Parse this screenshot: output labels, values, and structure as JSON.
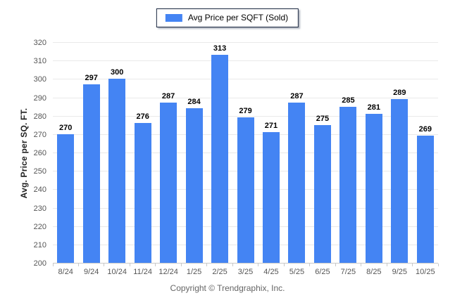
{
  "legend": {
    "label": "Avg Price per SQFT (Sold)",
    "swatch_color": "#4484f3"
  },
  "footer": {
    "copyright": "Copyright © Trendgraphix, Inc."
  },
  "chart_data": {
    "type": "bar",
    "title": "",
    "series_name": "Avg Price per SQFT (Sold)",
    "categories": [
      "8/24",
      "9/24",
      "10/24",
      "11/24",
      "12/24",
      "1/25",
      "2/25",
      "3/25",
      "4/25",
      "5/25",
      "6/25",
      "7/25",
      "8/25",
      "9/25",
      "10/25"
    ],
    "values": [
      270,
      297,
      300,
      276,
      287,
      284,
      313,
      279,
      271,
      287,
      275,
      285,
      281,
      289,
      269
    ],
    "xlabel": "",
    "ylabel": "Avg. Price per SQ. FT.",
    "ylim": [
      200,
      320
    ],
    "ytick_step": 10,
    "yticks": [
      200,
      210,
      220,
      230,
      240,
      250,
      260,
      270,
      280,
      290,
      300,
      310,
      320
    ],
    "grid": true,
    "value_labels": true,
    "legend_position": "top-center",
    "bar_color": "#4484f3"
  }
}
